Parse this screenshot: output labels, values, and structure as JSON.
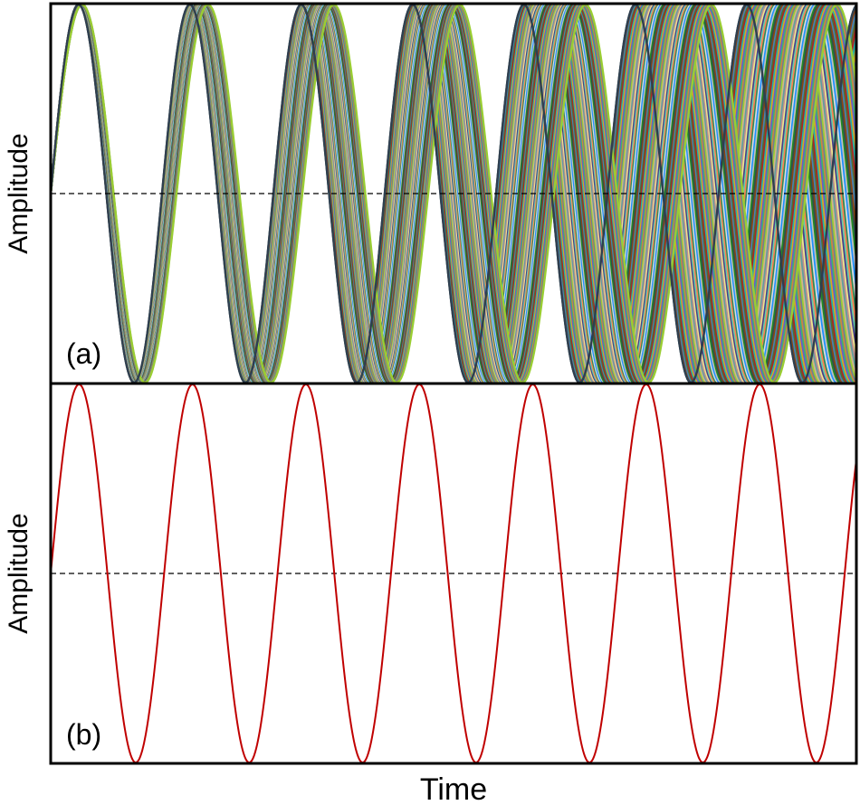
{
  "chart_data": [
    {
      "panel": "(a)",
      "type": "line",
      "ylabel": "Amplitude",
      "xlabel": "",
      "cycles": 7,
      "amplitude": 1,
      "baseline": 0,
      "num_traces": 60,
      "phase_spread_fraction": [
        0.0,
        0.14,
        0.27,
        0.4,
        0.53,
        0.66,
        0.78
      ],
      "reference_line": {
        "style": "dashed",
        "y": 0
      },
      "colors": [
        "#2f4f4f",
        "#8b4513",
        "#4682b4",
        "#556b2f",
        "#b22222",
        "#20b2aa",
        "#daa520",
        "#6a5acd",
        "#3cb371",
        "#cd853f",
        "#708090",
        "#9acd32",
        "#d2b48c",
        "#5f9ea0",
        "#bc8f8f",
        "#f0e68c",
        "#483d8b",
        "#66cdaa",
        "#ff7f50",
        "#2e8b57",
        "#dcdcdc",
        "#1e90ff",
        "#c0c0c0",
        "#228b22"
      ]
    },
    {
      "panel": "(b)",
      "type": "line",
      "ylabel": "Amplitude",
      "xlabel": "Time",
      "cycles": 7,
      "amplitude": 1,
      "baseline": 0,
      "reference_line": {
        "style": "dashed",
        "y": 0
      },
      "color": "#c00000"
    }
  ]
}
